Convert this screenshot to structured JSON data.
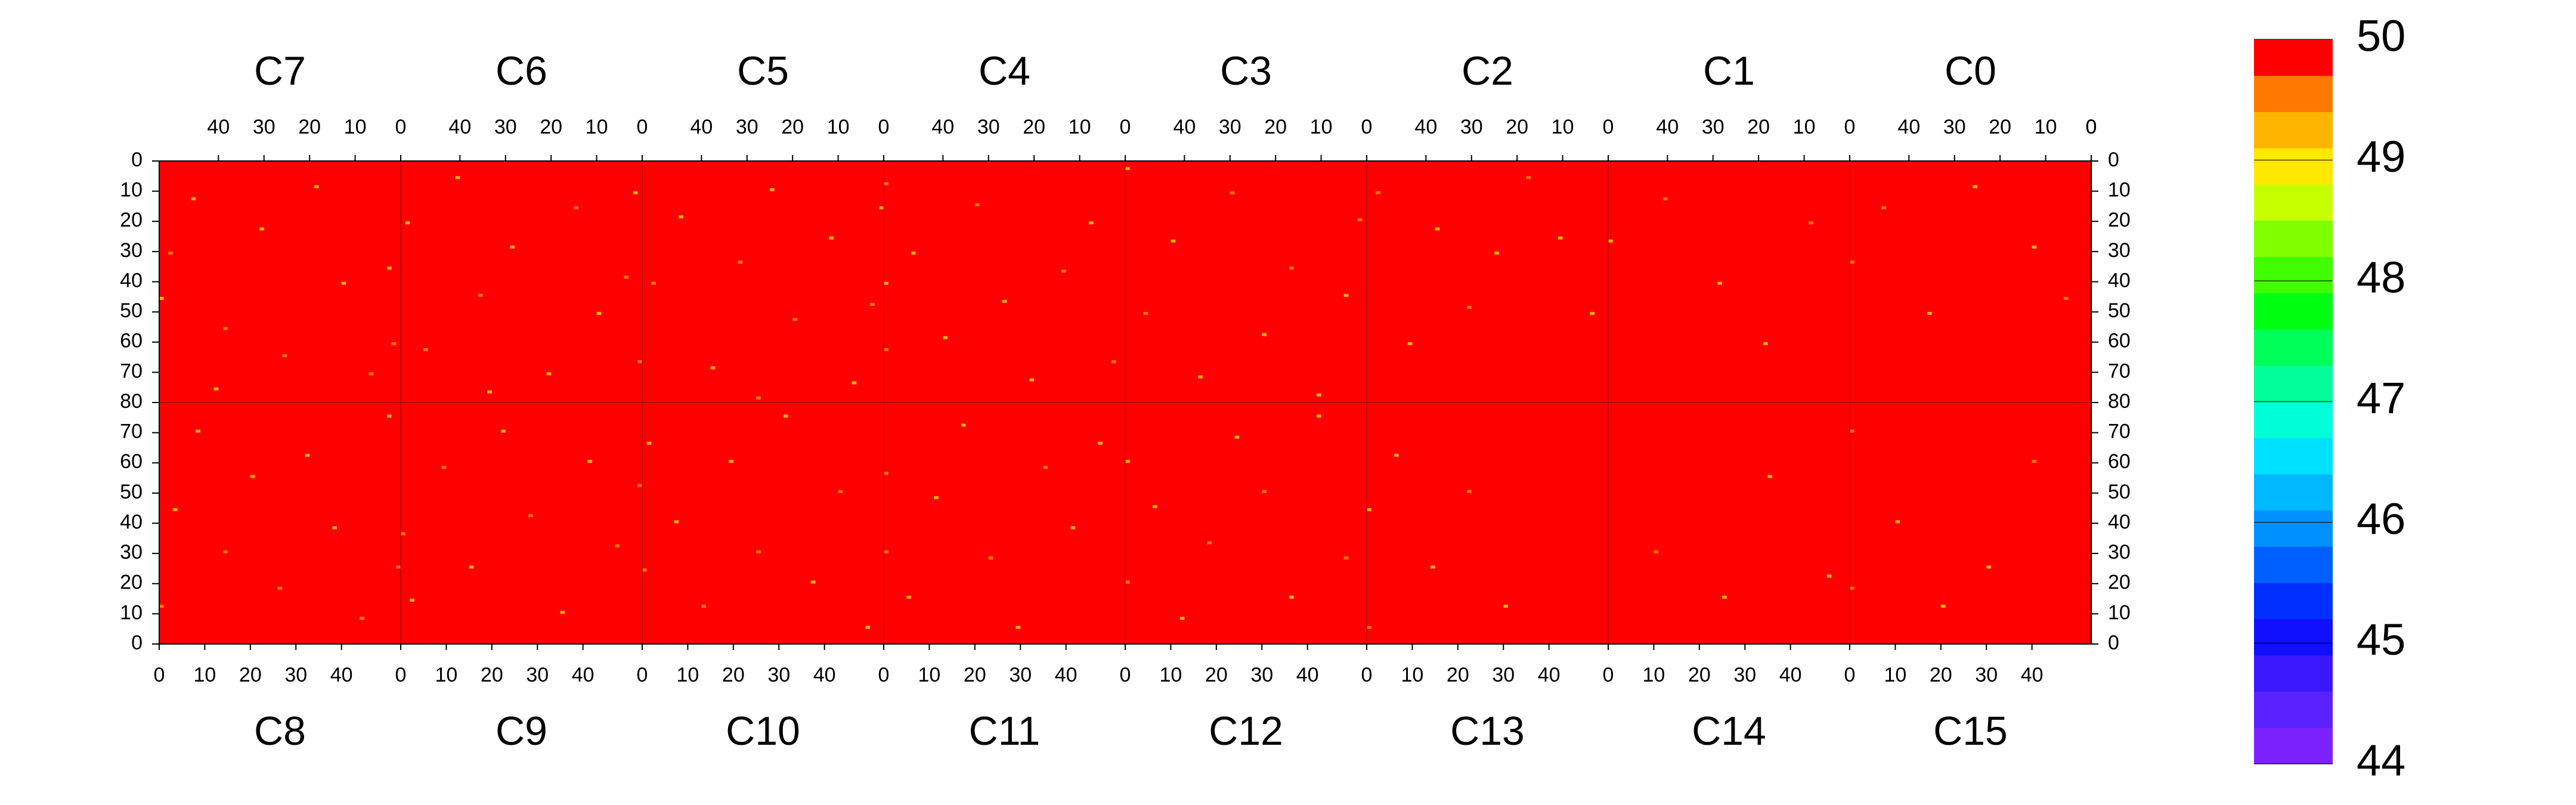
{
  "chart_data": {
    "type": "heatmap",
    "xlim": [
      0,
      53
    ],
    "ylim": [
      0,
      80
    ],
    "xticks": [
      0,
      10,
      20,
      30,
      40
    ],
    "yticks": [
      0,
      10,
      20,
      30,
      40,
      50,
      60,
      70,
      80
    ],
    "base_value": 50,
    "top_chips": [
      {
        "name": "C7",
        "cells": [
          [
            52,
            45,
            49.3
          ],
          [
            50,
            30,
            49.4
          ],
          [
            45,
            12,
            49.2
          ],
          [
            38,
            55,
            49.5
          ],
          [
            30,
            22,
            49.3
          ],
          [
            25,
            64,
            49.4
          ],
          [
            18,
            8,
            49.2
          ],
          [
            12,
            40,
            49.3
          ],
          [
            6,
            70,
            49.5
          ],
          [
            2,
            35,
            49.2
          ],
          [
            1,
            60,
            49.4
          ],
          [
            40,
            75,
            49.3
          ]
        ]
      },
      {
        "name": "C6",
        "cells": [
          [
            51,
            20,
            49.3
          ],
          [
            47,
            62,
            49.4
          ],
          [
            40,
            5,
            49.2
          ],
          [
            35,
            44,
            49.5
          ],
          [
            28,
            28,
            49.3
          ],
          [
            20,
            70,
            49.2
          ],
          [
            14,
            15,
            49.4
          ],
          [
            9,
            50,
            49.3
          ],
          [
            3,
            38,
            49.5
          ],
          [
            1,
            10,
            49.2
          ],
          [
            0,
            66,
            49.4
          ],
          [
            33,
            76,
            49.3
          ]
        ]
      },
      {
        "name": "C5",
        "cells": [
          [
            50,
            40,
            49.4
          ],
          [
            44,
            18,
            49.3
          ],
          [
            37,
            68,
            49.2
          ],
          [
            31,
            33,
            49.5
          ],
          [
            24,
            9,
            49.3
          ],
          [
            19,
            52,
            49.4
          ],
          [
            11,
            25,
            49.2
          ],
          [
            6,
            73,
            49.3
          ],
          [
            2,
            47,
            49.5
          ],
          [
            0,
            15,
            49.3
          ],
          [
            27,
            78,
            49.4
          ]
        ]
      },
      {
        "name": "C4",
        "cells": [
          [
            52,
            7,
            49.4
          ],
          [
            52,
            40,
            49.3
          ],
          [
            52,
            62,
            49.5
          ],
          [
            46,
            30,
            49.2
          ],
          [
            39,
            58,
            49.3
          ],
          [
            32,
            14,
            49.4
          ],
          [
            26,
            46,
            49.2
          ],
          [
            20,
            72,
            49.3
          ],
          [
            13,
            36,
            49.5
          ],
          [
            7,
            20,
            49.2
          ],
          [
            2,
            66,
            49.4
          ]
        ]
      },
      {
        "name": "C3",
        "cells": [
          [
            52,
            2,
            49.3
          ],
          [
            48,
            50,
            49.4
          ],
          [
            42,
            26,
            49.2
          ],
          [
            36,
            71,
            49.3
          ],
          [
            29,
            10,
            49.5
          ],
          [
            22,
            57,
            49.3
          ],
          [
            16,
            35,
            49.4
          ],
          [
            10,
            77,
            49.2
          ],
          [
            4,
            44,
            49.3
          ],
          [
            1,
            19,
            49.5
          ]
        ]
      },
      {
        "name": "C2",
        "cells": [
          [
            50,
            10,
            49.4
          ],
          [
            43,
            60,
            49.3
          ],
          [
            37,
            22,
            49.2
          ],
          [
            30,
            48,
            49.4
          ],
          [
            24,
            30,
            49.3
          ],
          [
            17,
            5,
            49.5
          ],
          [
            10,
            25,
            49.3
          ],
          [
            3,
            50,
            49.2
          ]
        ]
      },
      {
        "name": "C1",
        "cells": [
          [
            52,
            26,
            49.3
          ],
          [
            40,
            12,
            49.4
          ],
          [
            28,
            40,
            49.3
          ],
          [
            18,
            60,
            49.2
          ],
          [
            8,
            20,
            49.4
          ]
        ]
      },
      {
        "name": "C0",
        "cells": [
          [
            52,
            33,
            49.4
          ],
          [
            45,
            15,
            49.5
          ],
          [
            35,
            50,
            49.3
          ],
          [
            25,
            8,
            49.2
          ],
          [
            12,
            28,
            49.3
          ],
          [
            5,
            45,
            49.4
          ]
        ]
      }
    ],
    "bottom_chips": [
      {
        "name": "C8",
        "cells": [
          [
            0,
            12,
            49.4
          ],
          [
            3,
            44,
            49.3
          ],
          [
            8,
            70,
            49.2
          ],
          [
            14,
            30,
            49.5
          ],
          [
            20,
            55,
            49.3
          ],
          [
            26,
            18,
            49.4
          ],
          [
            32,
            62,
            49.2
          ],
          [
            38,
            38,
            49.3
          ],
          [
            44,
            8,
            49.5
          ],
          [
            50,
            75,
            49.3
          ],
          [
            52,
            25,
            49.4
          ]
        ]
      },
      {
        "name": "C9",
        "cells": [
          [
            0,
            36,
            49.5
          ],
          [
            2,
            14,
            49.3
          ],
          [
            9,
            58,
            49.4
          ],
          [
            15,
            25,
            49.2
          ],
          [
            22,
            70,
            49.3
          ],
          [
            28,
            42,
            49.5
          ],
          [
            35,
            10,
            49.3
          ],
          [
            41,
            60,
            49.2
          ],
          [
            47,
            32,
            49.4
          ],
          [
            52,
            52,
            49.5
          ]
        ]
      },
      {
        "name": "C10",
        "cells": [
          [
            0,
            24,
            49.4
          ],
          [
            1,
            66,
            49.3
          ],
          [
            7,
            40,
            49.2
          ],
          [
            13,
            12,
            49.5
          ],
          [
            19,
            60,
            49.3
          ],
          [
            25,
            30,
            49.4
          ],
          [
            31,
            75,
            49.2
          ],
          [
            37,
            20,
            49.3
          ],
          [
            43,
            50,
            49.5
          ],
          [
            49,
            5,
            49.3
          ]
        ]
      },
      {
        "name": "C11",
        "cells": [
          [
            0,
            30,
            49.5
          ],
          [
            0,
            56,
            49.4
          ],
          [
            5,
            15,
            49.3
          ],
          [
            11,
            48,
            49.2
          ],
          [
            17,
            72,
            49.3
          ],
          [
            23,
            28,
            49.5
          ],
          [
            29,
            5,
            49.3
          ],
          [
            35,
            58,
            49.4
          ],
          [
            41,
            38,
            49.2
          ],
          [
            47,
            66,
            49.3
          ]
        ]
      },
      {
        "name": "C12",
        "cells": [
          [
            0,
            60,
            49.3
          ],
          [
            0,
            20,
            49.4
          ],
          [
            6,
            45,
            49.2
          ],
          [
            12,
            8,
            49.3
          ],
          [
            18,
            33,
            49.5
          ],
          [
            24,
            68,
            49.3
          ],
          [
            30,
            50,
            49.4
          ],
          [
            36,
            15,
            49.2
          ],
          [
            42,
            75,
            49.3
          ],
          [
            48,
            28,
            49.5
          ]
        ]
      },
      {
        "name": "C13",
        "cells": [
          [
            0,
            5,
            49.4
          ],
          [
            0,
            44,
            49.3
          ],
          [
            6,
            62,
            49.2
          ],
          [
            14,
            25,
            49.3
          ],
          [
            22,
            50,
            49.4
          ],
          [
            30,
            12,
            49.3
          ]
        ]
      },
      {
        "name": "C14",
        "cells": [
          [
            10,
            30,
            49.4
          ],
          [
            25,
            15,
            49.3
          ],
          [
            35,
            55,
            49.2
          ],
          [
            48,
            22,
            49.3
          ]
        ]
      },
      {
        "name": "C15",
        "cells": [
          [
            0,
            18,
            49.4
          ],
          [
            0,
            70,
            49.5
          ],
          [
            10,
            40,
            49.3
          ],
          [
            20,
            12,
            49.2
          ],
          [
            30,
            25,
            49.3
          ],
          [
            40,
            60,
            49.4
          ]
        ]
      }
    ],
    "colorbar": {
      "levels": [
        44,
        44.3,
        44.6,
        44.9,
        45.2,
        45.5,
        45.8,
        46.1,
        46.4,
        46.7,
        47,
        47.3,
        47.6,
        47.9,
        48.2,
        48.5,
        48.8,
        49.1,
        49.4,
        49.7,
        50
      ],
      "colors": [
        "#7b22ff",
        "#5a22ff",
        "#3a18ff",
        "#1010ff",
        "#0030ff",
        "#0060ff",
        "#0090ff",
        "#00b8ff",
        "#00e0ff",
        "#00ffd8",
        "#00ff98",
        "#00ff58",
        "#00ff10",
        "#40ff00",
        "#80ff00",
        "#c8ff00",
        "#ffe800",
        "#ffb400",
        "#ff7800",
        "#ff0000"
      ],
      "ticks": [
        44,
        45,
        46,
        47,
        48,
        49,
        50
      ]
    }
  }
}
